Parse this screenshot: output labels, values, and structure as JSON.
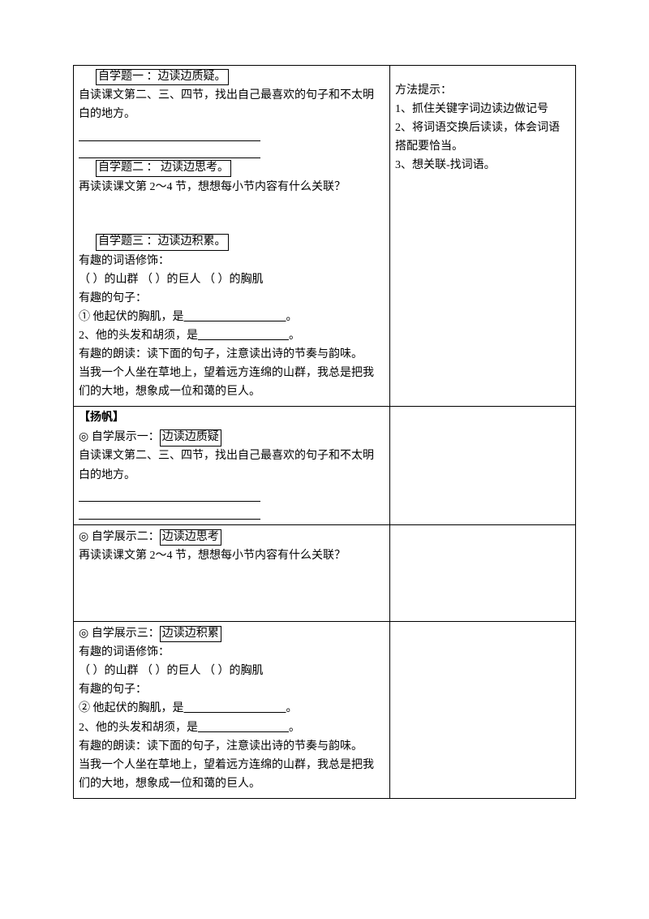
{
  "r1": {
    "q1_title": "自学题一 ：边读边质疑。",
    "q1_body": "自读课文第二、三、四节，找出自己最喜欢的句子和不太明白的地方。",
    "q2_title": "自学题二 ：  边读边思考。",
    "q2_body": "再读读课文第 2～4 节，想想每小节内容有什么关联？",
    "q3_title": "自学题三 ：边读边积累。",
    "q3_l1": "有趣的词语修饰：",
    "q3_l2": "（    ）的山群    （    ）的巨人    （    ）的胸肌",
    "q3_l3": "有趣的句子：",
    "q3_l4a": "①   他起伏的胸肌，是",
    "q3_l4b": "                                    ",
    "q3_l4c": "。",
    "q3_l5a": "2、他的头发和胡须，是",
    "q3_l5b": "                                ",
    "q3_l5c": "。",
    "q3_l6": "有趣的朗读：读下面的句子，注意读出诗的节奏与韵味。",
    "q3_l7": "当我一个人坐在草地上，望着远方连绵的山群，我总是把我们的大地，想象成一位和蔼的巨人。",
    "tips_t": "方法提示：",
    "tips_1": "1、抓住关键字词边读边做记号",
    "tips_2": "2、将词语交换后读读，体会词语搭配要恰当。",
    "tips_3": "3、想关联-找词语。"
  },
  "r2": {
    "head": "【扬帆】",
    "mark": "◎",
    "d1_label": "  自学展示一：",
    "d1_box": "边读边质疑",
    "d1_body": "自读课文第二、三、四节，找出自己最喜欢的句子和不太明白的地方。"
  },
  "r3": {
    "mark": "◎",
    "d2_label": "  自学展示二：",
    "d2_box": "边读边思考",
    "d2_body": "再读读课文第 2～4 节，想想每小节内容有什么关联？"
  },
  "r4": {
    "mark": "◎",
    "d3_label": "  自学展示三：",
    "d3_box": "边读边积累",
    "l1": "有趣的词语修饰：",
    "l2": "（      ）的山群  （      ）的巨人  （      ）的胸肌",
    "l3": "有趣的句子：",
    "l4a": "②   他起伏的胸肌，是",
    "l4b": "                                    ",
    "l4c": "。",
    "l5a": "2、他的头发和胡须，是",
    "l5b": "                                ",
    "l5c": "。",
    "l6": "有趣的朗读：读下面的句子，注意读出诗的节奏与韵味。",
    "l7": "当我一个人坐在草地上，望着远方连绵的山群，我总是把我们的大地，想象成一位和蔼的巨人。"
  }
}
